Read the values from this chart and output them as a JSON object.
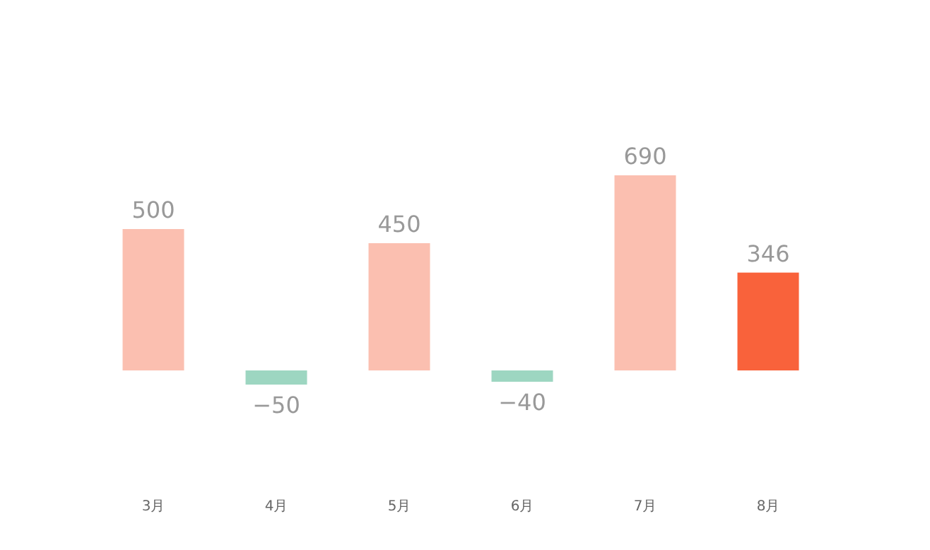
{
  "chart_data": {
    "type": "bar",
    "categories": [
      "3月",
      "4月",
      "5月",
      "6月",
      "7月",
      "8月"
    ],
    "values": [
      500,
      -50,
      450,
      -40,
      690,
      346
    ],
    "colors": [
      "#fbbfb0",
      "#9dd6c1",
      "#fbbfb0",
      "#9dd6c1",
      "#fbbfb0",
      "#f9623b"
    ],
    "data_labels": true
  }
}
